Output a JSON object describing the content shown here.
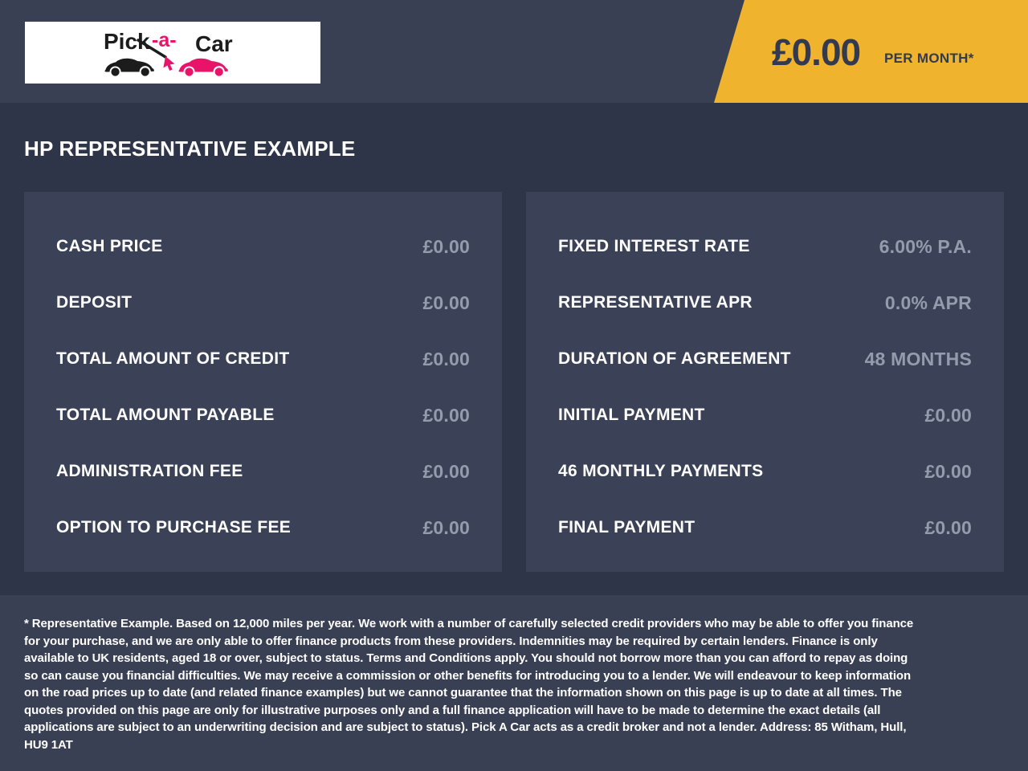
{
  "header": {
    "logo": {
      "part1": "Pick",
      "part2": "-a-",
      "part3": "Car"
    },
    "banner": {
      "amount": "£0.00",
      "per": "PER MONTH*"
    }
  },
  "title": "HP REPRESENTATIVE EXAMPLE",
  "panels": {
    "left": {
      "rows": [
        {
          "label": "CASH PRICE",
          "value": "£0.00"
        },
        {
          "label": "DEPOSIT",
          "value": "£0.00"
        },
        {
          "label": "TOTAL AMOUNT OF CREDIT",
          "value": "£0.00"
        },
        {
          "label": "TOTAL AMOUNT PAYABLE",
          "value": "£0.00"
        },
        {
          "label": "ADMINISTRATION FEE",
          "value": "£0.00"
        },
        {
          "label": "OPTION TO PURCHASE FEE",
          "value": "£0.00"
        }
      ]
    },
    "right": {
      "rows": [
        {
          "label": "FIXED INTEREST RATE",
          "value": "6.00% P.A."
        },
        {
          "label": "REPRESENTATIVE APR",
          "value": "0.0% APR"
        },
        {
          "label": "DURATION OF AGREEMENT",
          "value": "48 MONTHS"
        },
        {
          "label": "INITIAL PAYMENT",
          "value": "£0.00"
        },
        {
          "label": "46 MONTHLY PAYMENTS",
          "value": "£0.00"
        },
        {
          "label": "FINAL PAYMENT",
          "value": "£0.00"
        }
      ]
    }
  },
  "footer": {
    "disclaimer": "* Representative Example. Based on 12,000 miles per year. We work with a number of carefully selected credit providers who may be able to offer you finance for your purchase, and we are only able to offer finance products from these providers. Indemnities may be required by certain lenders. Finance is only available to UK residents, aged 18 or over, subject to status. Terms and Conditions apply. You should not borrow more than you can afford to repay as doing so can cause you financial difficulties. We may receive a commission or other benefits for introducing you to a lender. We will endeavour to keep information on the road prices up to date (and related finance examples) but we cannot guarantee that the information shown on this page is up to date at all times. The quotes provided on this page are only for illustrative purposes only and a full finance application will have to be made to determine the exact details (all applications are subject to an underwriting decision and are subject to status). Pick A Car acts as a credit broker and not a lender. Address: 85 Witham, Hull, HU9 1AT"
  },
  "colors": {
    "accent_yellow": "#efb32d",
    "brand_pink": "#e8146a",
    "page_bg": "#2f3548",
    "band_bg": "#3a4054",
    "panel_bg": "#3b4257",
    "value_gray": "#949bac"
  }
}
